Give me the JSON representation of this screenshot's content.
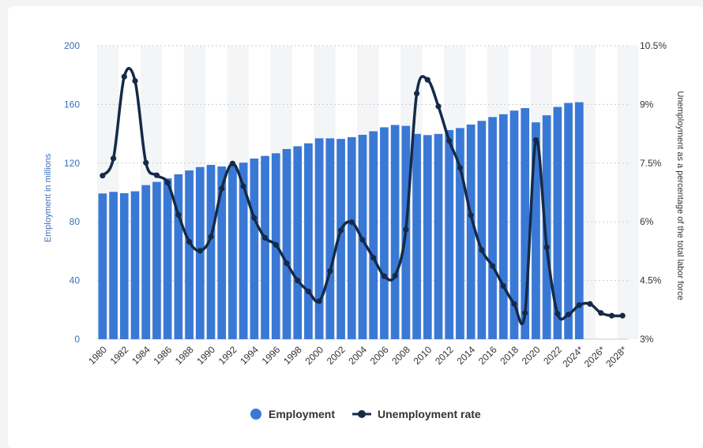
{
  "chart_data": {
    "type": "bar+line",
    "categories": [
      "1980",
      "1981",
      "1982",
      "1983",
      "1984",
      "1985",
      "1986",
      "1987",
      "1988",
      "1989",
      "1990",
      "1991",
      "1992",
      "1993",
      "1994",
      "1995",
      "1996",
      "1997",
      "1998",
      "1999",
      "2000",
      "2001",
      "2002",
      "2003",
      "2004",
      "2005",
      "2006",
      "2007",
      "2008",
      "2009",
      "2010",
      "2011",
      "2012",
      "2013",
      "2014",
      "2015",
      "2016",
      "2017",
      "2018",
      "2019",
      "2020",
      "2021",
      "2022",
      "2023",
      "2024*",
      "2025*",
      "2026*",
      "2027*",
      "2028*"
    ],
    "x_tick_labels": [
      "1980",
      "1982",
      "1984",
      "1986",
      "1988",
      "1990",
      "1992",
      "1994",
      "1996",
      "1998",
      "2000",
      "2002",
      "2004",
      "2006",
      "2008",
      "2010",
      "2012",
      "2014",
      "2016",
      "2018",
      "2020",
      "2022",
      "2024*",
      "2026*",
      "2028*"
    ],
    "series": [
      {
        "name": "Employment",
        "axis": "left",
        "color": "#3a78d6",
        "values": [
          99.3,
          100.4,
          99.5,
          100.8,
          105.0,
          107.2,
          109.6,
          112.4,
          115.0,
          117.3,
          118.8,
          117.7,
          118.5,
          120.3,
          123.1,
          124.9,
          126.7,
          129.6,
          131.5,
          133.5,
          136.9,
          136.9,
          136.5,
          137.7,
          139.3,
          141.7,
          144.4,
          146.0,
          145.4,
          139.9,
          139.1,
          139.9,
          142.5,
          143.9,
          146.3,
          148.8,
          151.4,
          153.3,
          155.8,
          157.5,
          147.8,
          152.6,
          158.3,
          161.0,
          161.5,
          null,
          null,
          null,
          null
        ]
      },
      {
        "name": "Unemployment rate",
        "axis": "right",
        "color": "#142a47",
        "values": [
          7.18,
          7.62,
          9.71,
          9.6,
          7.51,
          7.19,
          7.0,
          6.18,
          5.49,
          5.26,
          5.62,
          6.85,
          7.49,
          6.91,
          6.1,
          5.59,
          5.41,
          4.94,
          4.5,
          4.22,
          3.97,
          4.74,
          5.78,
          5.99,
          5.54,
          5.08,
          4.61,
          4.62,
          5.8,
          9.28,
          9.63,
          8.95,
          8.07,
          7.38,
          6.17,
          5.28,
          4.87,
          4.36,
          3.9,
          3.67,
          8.09,
          5.35,
          3.65,
          3.63,
          3.87,
          3.9,
          3.67,
          3.6,
          3.6
        ]
      }
    ],
    "y_left": {
      "label": "Employment in millions",
      "ticks": [
        "0",
        "40",
        "80",
        "120",
        "160",
        "200"
      ],
      "lim": [
        0,
        200
      ]
    },
    "y_right": {
      "label": "Unemployment as a percentage of the total labor force",
      "ticks": [
        "3%",
        "4.5%",
        "6%",
        "7.5%",
        "9%",
        "10.5%"
      ],
      "lim": [
        3,
        10.5
      ]
    },
    "grid": true,
    "legend_position": "bottom-center",
    "legend": [
      "Employment",
      "Unemployment rate"
    ]
  }
}
